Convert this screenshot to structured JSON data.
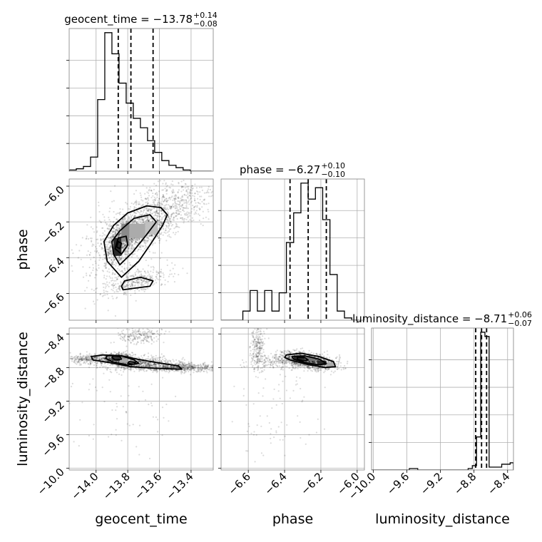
{
  "chart_data": {
    "type": "corner",
    "parameters": [
      "geocent_time",
      "phase",
      "luminosity_distance"
    ],
    "grid": true,
    "titles": [
      {
        "param": "geocent_time",
        "prefix": "geocent_time = ",
        "median": "−13.78",
        "plus": "+0.14",
        "minus": "−0.08"
      },
      {
        "param": "phase",
        "prefix": "phase = ",
        "median": "−6.27",
        "plus": "+0.10",
        "minus": "−0.10"
      },
      {
        "param": "luminosity_distance",
        "prefix": "luminosity_distance = ",
        "median": "−8.71",
        "plus": "+0.06",
        "minus": "−0.07"
      }
    ],
    "ranges": {
      "geocent_time": [
        -14.17,
        -13.26
      ],
      "phase": [
        -6.75,
        -5.96
      ],
      "luminosity_distance": [
        -10.02,
        -8.33
      ]
    },
    "ticks": {
      "geocent_time": [
        -14.0,
        -13.8,
        -13.6,
        -13.4
      ],
      "phase": [
        -6.6,
        -6.4,
        -6.2,
        -6.0
      ],
      "luminosity_distance": [
        -10.0,
        -9.6,
        -9.2,
        -8.8,
        -8.4
      ]
    },
    "tick_labels": {
      "geocent_time": [
        "−14.0",
        "−13.8",
        "−13.6",
        "−13.4"
      ],
      "phase": [
        "−6.6",
        "−6.4",
        "−6.2",
        "−6.0"
      ],
      "phase_y": [
        "−6.0",
        "−6.2",
        "−6.4",
        "−6.6"
      ],
      "luminosity_distance": [
        "−10.0",
        "−9.6",
        "−9.2",
        "−8.8",
        "−8.4"
      ],
      "luminosity_distance_y": [
        "−8.4",
        "−8.8",
        "−9.2",
        "−9.6",
        "−10.0"
      ]
    },
    "quantiles": {
      "geocent_time": [
        -13.86,
        -13.78,
        -13.64
      ],
      "phase": [
        -6.37,
        -6.27,
        -6.17
      ],
      "luminosity_distance": [
        -8.78,
        -8.71,
        -8.65
      ]
    },
    "histograms": [
      {
        "param": "geocent_time",
        "edges": [
          -14.17,
          -14.125,
          -14.08,
          -14.035,
          -13.99,
          -13.945,
          -13.9,
          -13.855,
          -13.81,
          -13.765,
          -13.72,
          -13.675,
          -13.63,
          -13.585,
          -13.54,
          -13.495,
          -13.45,
          -13.405,
          -13.36,
          -13.315,
          -13.27
        ],
        "counts": [
          1,
          2,
          4,
          12,
          61,
          118,
          100,
          75,
          58,
          45,
          37,
          26,
          16,
          9,
          5,
          3,
          1,
          0,
          0,
          0
        ]
      },
      {
        "param": "phase",
        "edges": [
          -6.75,
          -6.71,
          -6.67,
          -6.63,
          -6.59,
          -6.55,
          -6.51,
          -6.47,
          -6.43,
          -6.39,
          -6.35,
          -6.31,
          -6.27,
          -6.23,
          -6.19,
          -6.15,
          -6.11,
          -6.07,
          -6.03,
          -5.99
        ],
        "counts": [
          0,
          0,
          0,
          4,
          13,
          4,
          13,
          4,
          12,
          34,
          47,
          60,
          53,
          58,
          44,
          20,
          4,
          1,
          0
        ]
      },
      {
        "param": "luminosity_distance",
        "edges": [
          -10.02,
          -9.97,
          -9.92,
          -9.87,
          -9.82,
          -9.77,
          -9.72,
          -9.67,
          -9.62,
          -9.57,
          -9.52,
          -9.47,
          -9.42,
          -9.37,
          -9.32,
          -9.27,
          -9.22,
          -9.17,
          -9.12,
          -9.07,
          -9.02,
          -8.97,
          -8.92,
          -8.87,
          -8.82,
          -8.77,
          -8.72,
          -8.67,
          -8.62,
          -8.57,
          -8.52,
          -8.47,
          -8.42,
          -8.37,
          -8.33
        ],
        "counts": [
          0,
          0,
          0,
          0,
          0,
          0,
          0,
          0,
          0,
          1,
          1,
          0,
          0,
          0,
          0,
          0,
          0,
          0,
          0,
          0,
          0,
          0,
          0,
          1,
          3,
          23,
          96,
          93,
          2,
          2,
          2,
          4,
          4,
          5
        ]
      }
    ],
    "pairs": [
      {
        "x": "geocent_time",
        "y": "phase",
        "blobs": [
          {
            "cx": -13.73,
            "cy": -6.25,
            "sx": 0.11,
            "sy": 0.07,
            "rho": 0.55,
            "n": 900
          },
          {
            "cx": -13.86,
            "cy": -6.33,
            "sx": 0.04,
            "sy": 0.06,
            "rho": 0.3,
            "n": 450
          },
          {
            "cx": -13.8,
            "cy": -6.26,
            "sx": 0.06,
            "sy": 0.04,
            "rho": 0.0,
            "n": 300
          },
          {
            "cx": -13.55,
            "cy": -6.12,
            "sx": 0.16,
            "sy": 0.08,
            "rho": 0.4,
            "n": 650
          },
          {
            "cx": -13.74,
            "cy": -6.53,
            "sx": 0.1,
            "sy": 0.035,
            "rho": 0.5,
            "n": 320
          },
          {
            "cx": -13.9,
            "cy": -6.38,
            "sx": 0.12,
            "sy": 0.14,
            "rho": 0.2,
            "n": 250
          }
        ],
        "contours": [
          [
            [
              -13.93,
              -6.42
            ],
            [
              -13.84,
              -6.51
            ],
            [
              -13.73,
              -6.42
            ],
            [
              -13.66,
              -6.33
            ],
            [
              -13.58,
              -6.22
            ],
            [
              -13.55,
              -6.16
            ],
            [
              -13.59,
              -6.12
            ],
            [
              -13.68,
              -6.11
            ],
            [
              -13.8,
              -6.15
            ],
            [
              -13.89,
              -6.22
            ],
            [
              -13.95,
              -6.31
            ],
            [
              -13.93,
              -6.42
            ]
          ],
          [
            [
              -13.89,
              -6.38
            ],
            [
              -13.85,
              -6.44
            ],
            [
              -13.77,
              -6.37
            ],
            [
              -13.68,
              -6.27
            ],
            [
              -13.62,
              -6.2
            ],
            [
              -13.66,
              -6.16
            ],
            [
              -13.76,
              -6.18
            ],
            [
              -13.85,
              -6.25
            ],
            [
              -13.9,
              -6.31
            ],
            [
              -13.89,
              -6.38
            ]
          ],
          [
            [
              -13.88,
              -6.35
            ],
            [
              -13.84,
              -6.38
            ],
            [
              -13.8,
              -6.33
            ],
            [
              -13.81,
              -6.28
            ],
            [
              -13.86,
              -6.29
            ],
            [
              -13.88,
              -6.35
            ]
          ],
          [
            [
              -13.87,
              -6.34
            ],
            [
              -13.85,
              -6.35
            ],
            [
              -13.84,
              -6.32
            ],
            [
              -13.86,
              -6.31
            ],
            [
              -13.87,
              -6.34
            ]
          ],
          [
            [
              -13.83,
              -6.58
            ],
            [
              -13.75,
              -6.57
            ],
            [
              -13.66,
              -6.56
            ],
            [
              -13.64,
              -6.53
            ],
            [
              -13.72,
              -6.51
            ],
            [
              -13.82,
              -6.53
            ],
            [
              -13.84,
              -6.56
            ],
            [
              -13.83,
              -6.58
            ]
          ]
        ],
        "hist_cells": [
          {
            "x0": -13.89,
            "x1": -13.84,
            "y0": -6.39,
            "y1": -6.29,
            "level": 0.9
          },
          {
            "x0": -13.84,
            "x1": -13.79,
            "y0": -6.31,
            "y1": -6.21,
            "level": 0.45
          },
          {
            "x0": -13.79,
            "x1": -13.69,
            "y0": -6.29,
            "y1": -6.21,
            "level": 0.3
          },
          {
            "x0": -13.69,
            "x1": -13.61,
            "y0": -6.27,
            "y1": -6.2,
            "level": 0.2
          }
        ]
      },
      {
        "x": "geocent_time",
        "y": "luminosity_distance",
        "blobs": [
          {
            "cx": -13.87,
            "cy": -8.69,
            "sx": 0.05,
            "sy": 0.03,
            "rho": 0.0,
            "n": 550
          },
          {
            "cx": -13.72,
            "cy": -8.75,
            "sx": 0.12,
            "sy": 0.04,
            "rho": 0.0,
            "n": 700
          },
          {
            "cx": -13.45,
            "cy": -8.8,
            "sx": 0.12,
            "sy": 0.025,
            "rho": 0.0,
            "n": 550
          },
          {
            "cx": -14.05,
            "cy": -8.7,
            "sx": 0.06,
            "sy": 0.03,
            "rho": 0.0,
            "n": 250
          },
          {
            "cx": -13.72,
            "cy": -8.42,
            "sx": 0.07,
            "sy": 0.05,
            "rho": 0.0,
            "n": 200
          },
          {
            "cx": -13.85,
            "cy": -9.35,
            "sx": 0.18,
            "sy": 0.3,
            "rho": 0.0,
            "n": 70
          }
        ],
        "contours": [
          [
            [
              -14.03,
              -8.67
            ],
            [
              -13.96,
              -8.65
            ],
            [
              -13.84,
              -8.66
            ],
            [
              -13.74,
              -8.7
            ],
            [
              -13.62,
              -8.74
            ],
            [
              -13.48,
              -8.78
            ],
            [
              -13.46,
              -8.82
            ],
            [
              -13.62,
              -8.81
            ],
            [
              -13.78,
              -8.79
            ],
            [
              -13.92,
              -8.74
            ],
            [
              -14.02,
              -8.71
            ],
            [
              -14.03,
              -8.67
            ]
          ],
          [
            [
              -13.93,
              -8.66
            ],
            [
              -13.84,
              -8.66
            ],
            [
              -13.76,
              -8.71
            ],
            [
              -13.73,
              -8.75
            ],
            [
              -13.8,
              -8.77
            ],
            [
              -13.9,
              -8.73
            ],
            [
              -13.94,
              -8.69
            ],
            [
              -13.93,
              -8.66
            ]
          ],
          [
            [
              -13.89,
              -8.66
            ],
            [
              -13.85,
              -8.67
            ],
            [
              -13.84,
              -8.7
            ],
            [
              -13.88,
              -8.71
            ],
            [
              -13.9,
              -8.68
            ],
            [
              -13.89,
              -8.66
            ]
          ],
          [
            [
              -13.79,
              -8.73
            ],
            [
              -13.75,
              -8.74
            ],
            [
              -13.76,
              -8.76
            ],
            [
              -13.8,
              -8.75
            ],
            [
              -13.79,
              -8.73
            ]
          ]
        ],
        "hist_cells": [
          {
            "x0": -13.9,
            "x1": -13.85,
            "y0": -8.72,
            "y1": -8.65,
            "level": 0.85
          },
          {
            "x0": -13.8,
            "x1": -13.74,
            "y0": -8.77,
            "y1": -8.72,
            "level": 0.5
          },
          {
            "x0": -13.85,
            "x1": -13.8,
            "y0": -8.74,
            "y1": -8.69,
            "level": 0.3
          }
        ]
      },
      {
        "x": "phase",
        "y": "luminosity_distance",
        "blobs": [
          {
            "cx": -6.27,
            "cy": -8.72,
            "sx": 0.07,
            "sy": 0.05,
            "rho": -0.5,
            "n": 1100
          },
          {
            "cx": -6.35,
            "cy": -8.73,
            "sx": 0.12,
            "sy": 0.04,
            "rho": 0.0,
            "n": 400
          },
          {
            "cx": -6.55,
            "cy": -8.55,
            "sx": 0.02,
            "sy": 0.14,
            "rho": 0.0,
            "n": 250
          },
          {
            "cx": -6.45,
            "cy": -9.3,
            "sx": 0.12,
            "sy": 0.3,
            "rho": 0.3,
            "n": 80
          }
        ],
        "contours": [
          [
            [
              -6.39,
              -8.65
            ],
            [
              -6.31,
              -8.63
            ],
            [
              -6.21,
              -8.67
            ],
            [
              -6.13,
              -8.73
            ],
            [
              -6.12,
              -8.79
            ],
            [
              -6.18,
              -8.8
            ],
            [
              -6.28,
              -8.76
            ],
            [
              -6.37,
              -8.71
            ],
            [
              -6.4,
              -8.68
            ],
            [
              -6.39,
              -8.65
            ]
          ],
          [
            [
              -6.36,
              -8.67
            ],
            [
              -6.29,
              -8.66
            ],
            [
              -6.21,
              -8.7
            ],
            [
              -6.17,
              -8.75
            ],
            [
              -6.21,
              -8.77
            ],
            [
              -6.29,
              -8.74
            ],
            [
              -6.35,
              -8.7
            ],
            [
              -6.36,
              -8.67
            ]
          ],
          [
            [
              -6.33,
              -8.68
            ],
            [
              -6.29,
              -8.68
            ],
            [
              -6.27,
              -8.71
            ],
            [
              -6.3,
              -8.72
            ],
            [
              -6.33,
              -8.7
            ],
            [
              -6.33,
              -8.68
            ]
          ]
        ],
        "hist_cells": [
          {
            "x0": -6.35,
            "x1": -6.29,
            "y0": -8.71,
            "y1": -8.66,
            "level": 0.9
          },
          {
            "x0": -6.22,
            "x1": -6.17,
            "y0": -8.77,
            "y1": -8.72,
            "level": 0.9
          },
          {
            "x0": -6.29,
            "x1": -6.23,
            "y0": -8.72,
            "y1": -8.67,
            "level": 0.55
          },
          {
            "x0": -6.17,
            "x1": -6.13,
            "y0": -8.79,
            "y1": -8.74,
            "level": 0.3
          }
        ]
      }
    ]
  }
}
